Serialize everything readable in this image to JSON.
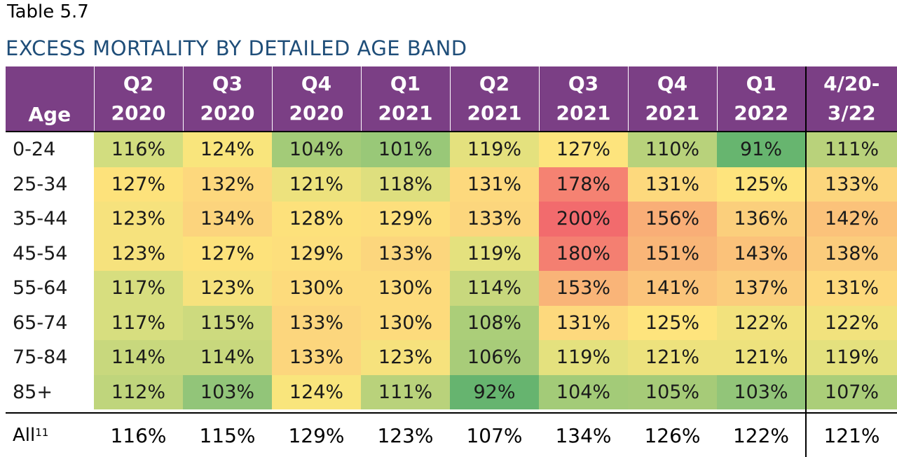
{
  "table_number": "Table 5.7",
  "title": "EXCESS MORTALITY BY DETAILED AGE BAND",
  "columns": [
    {
      "line1": "Q2",
      "line2": "2020"
    },
    {
      "line1": "Q3",
      "line2": "2020"
    },
    {
      "line1": "Q4",
      "line2": "2020"
    },
    {
      "line1": "Q1",
      "line2": "2021"
    },
    {
      "line1": "Q2",
      "line2": "2021"
    },
    {
      "line1": "Q3",
      "line2": "2021"
    },
    {
      "line1": "Q4",
      "line2": "2021"
    },
    {
      "line1": "Q1",
      "line2": "2022"
    },
    {
      "line1": "4/20-",
      "line2": "3/22"
    }
  ],
  "age_header": "Age",
  "rows": [
    {
      "age": "0-24",
      "values": [
        "116%",
        "124%",
        "104%",
        "101%",
        "119%",
        "127%",
        "110%",
        "91%",
        "111%"
      ],
      "colors": [
        "#d2dd7f",
        "#f9e57c",
        "#a3cb78",
        "#99c878",
        "#e4e17e",
        "#fde47d",
        "#b8d27b",
        "#67b56f",
        "#b9d27b"
      ]
    },
    {
      "age": "25-34",
      "values": [
        "127%",
        "132%",
        "121%",
        "118%",
        "131%",
        "178%",
        "131%",
        "125%",
        "133%"
      ],
      "colors": [
        "#fde27b",
        "#fdd87d",
        "#ede27d",
        "#dedf7e",
        "#fdd97d",
        "#f58272",
        "#fdd97d",
        "#fee47d",
        "#fcd67d"
      ]
    },
    {
      "age": "35-44",
      "values": [
        "123%",
        "134%",
        "128%",
        "129%",
        "133%",
        "200%",
        "156%",
        "136%",
        "142%"
      ],
      "colors": [
        "#f6e27d",
        "#fcd47d",
        "#fde17b",
        "#fddf7c",
        "#fcd67d",
        "#f26b6d",
        "#f9ae77",
        "#fbcf7c",
        "#fbc27a"
      ]
    },
    {
      "age": "45-54",
      "values": [
        "123%",
        "127%",
        "129%",
        "133%",
        "119%",
        "180%",
        "151%",
        "143%",
        "138%"
      ],
      "colors": [
        "#f6e27d",
        "#fde27b",
        "#fddf7c",
        "#fcd67d",
        "#e4e17e",
        "#f47f71",
        "#f9b678",
        "#fbc27a",
        "#fbcc7c"
      ]
    },
    {
      "age": "55-64",
      "values": [
        "117%",
        "123%",
        "130%",
        "130%",
        "114%",
        "153%",
        "141%",
        "137%",
        "131%"
      ],
      "colors": [
        "#d7de7f",
        "#f6e27d",
        "#fddb7c",
        "#fddb7c",
        "#c8d87d",
        "#f9b478",
        "#fbc47b",
        "#fbcd7c",
        "#fdd97d"
      ]
    },
    {
      "age": "65-74",
      "values": [
        "117%",
        "115%",
        "133%",
        "130%",
        "108%",
        "131%",
        "125%",
        "122%",
        "122%"
      ],
      "colors": [
        "#d7de7f",
        "#cdda7e",
        "#fcd67d",
        "#fddb7c",
        "#abce79",
        "#fdd97d",
        "#fee47d",
        "#f2e27d",
        "#f2e27d"
      ]
    },
    {
      "age": "75-84",
      "values": [
        "114%",
        "114%",
        "133%",
        "123%",
        "106%",
        "119%",
        "121%",
        "121%",
        "119%"
      ],
      "colors": [
        "#c8d87d",
        "#c8d87d",
        "#fcd67d",
        "#f6e27d",
        "#a8cc79",
        "#e4e17e",
        "#ede27d",
        "#ede27d",
        "#e4e17e"
      ]
    },
    {
      "age": "85+",
      "values": [
        "112%",
        "103%",
        "124%",
        "111%",
        "92%",
        "104%",
        "105%",
        "103%",
        "107%"
      ],
      "colors": [
        "#bfd57c",
        "#92c579",
        "#f9e57c",
        "#b9d27b",
        "#66b46f",
        "#a3cb78",
        "#a6cb78",
        "#92c579",
        "#abce79"
      ]
    }
  ],
  "all_row": {
    "label": "All",
    "footnote": "11",
    "values": [
      "116%",
      "115%",
      "129%",
      "123%",
      "107%",
      "134%",
      "126%",
      "122%",
      "121%"
    ]
  }
}
